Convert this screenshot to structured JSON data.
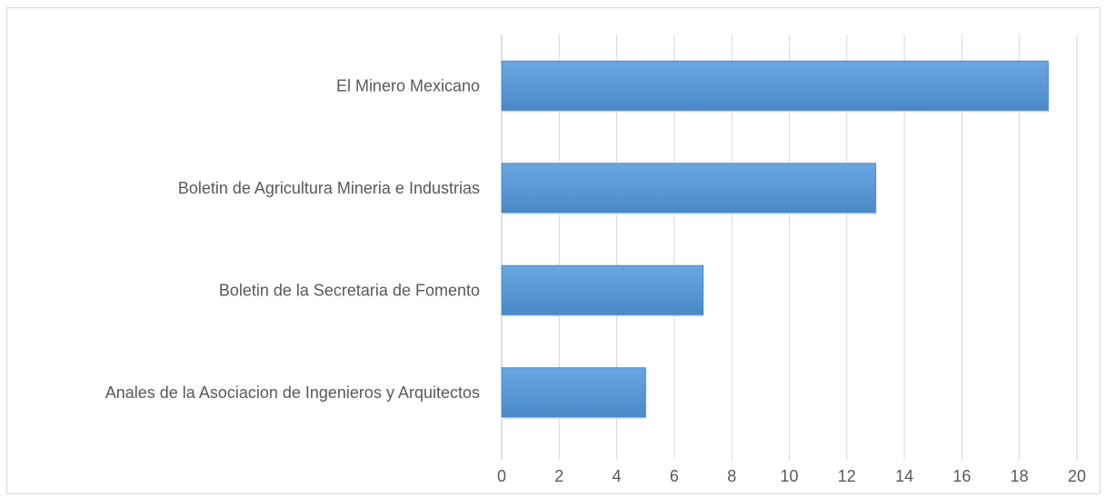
{
  "chart_data": {
    "type": "bar",
    "orientation": "horizontal",
    "categories": [
      "El Minero Mexicano",
      "Boletin de Agricultura  Mineria e Industrias",
      "Boletin de la Secretaria de Fomento",
      "Anales de la Asociacion de Ingenieros y Arquitectos"
    ],
    "values": [
      19,
      13,
      7,
      5
    ],
    "xlim": [
      0,
      20
    ],
    "xticks": [
      0,
      2,
      4,
      6,
      8,
      10,
      12,
      14,
      16,
      18,
      20
    ],
    "grid": "vertical",
    "legend": "none",
    "bar_color": "#5b9bd5",
    "bar_color_light": "#6aa7e2",
    "bar_color_dark": "#4a89c8"
  }
}
